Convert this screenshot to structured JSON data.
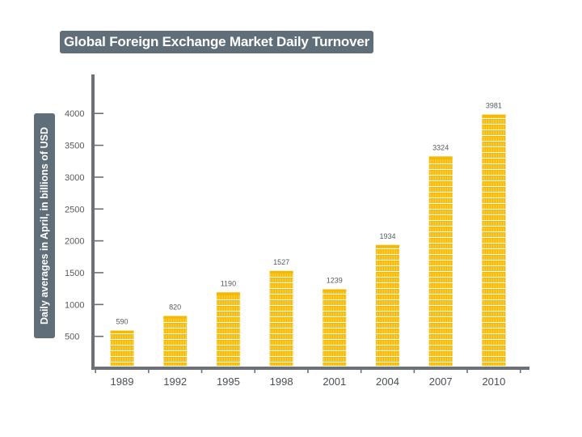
{
  "chart_data": {
    "type": "bar",
    "title": "Global Foreign Exchange Market Daily Turnover",
    "ylabel": "Daily averages in April, in billions of USD",
    "xlabel": "",
    "categories": [
      "1989",
      "1992",
      "1995",
      "1998",
      "2001",
      "2004",
      "2007",
      "2010"
    ],
    "values": [
      590,
      820,
      1190,
      1527,
      1239,
      1934,
      3324,
      3981
    ],
    "yticks": [
      500,
      1000,
      1500,
      2000,
      2500,
      3000,
      3500,
      4000
    ],
    "ylim": [
      0,
      4000
    ],
    "grid": false,
    "bar_style": "stacked coins",
    "colors": {
      "coin": "#f5b800",
      "coin_stripe": "#ffffff",
      "axis": "#6b7177",
      "label_box": "#5f6e78"
    }
  }
}
